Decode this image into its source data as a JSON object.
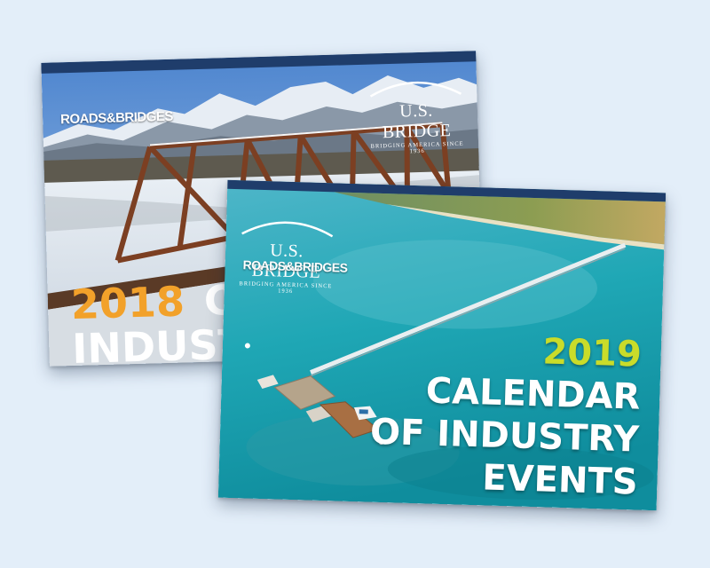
{
  "card_2018": {
    "publisher": "ROADS&BRIDGES",
    "sponsor_name": "U.S. BRIDGE",
    "sponsor_tagline": "BRIDGING AMERICA SINCE 1936",
    "year": "2018",
    "line1": "CALE",
    "line2": "INDUSTRY",
    "year_color": "#f2a12a"
  },
  "card_2019": {
    "publisher": "ROADS&BRIDGES",
    "sponsor_name": "U.S. BRIDGE",
    "sponsor_tagline": "BRIDGING AMERICA SINCE 1936",
    "year": "2019",
    "line1": "CALENDAR",
    "line2": "OF INDUSTRY",
    "line3": "EVENTS",
    "year_color": "#c9dc2a"
  }
}
